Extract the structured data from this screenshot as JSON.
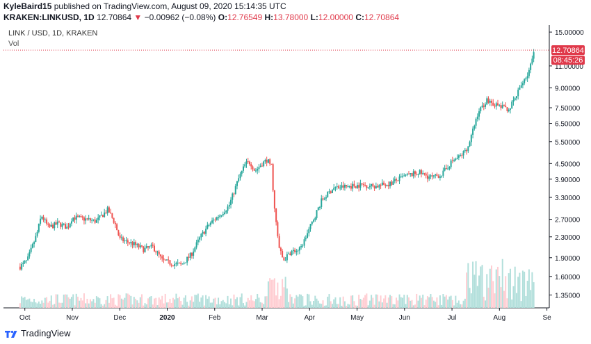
{
  "header": {
    "author": "KyleBaird15",
    "published_text": "published on TradingView.com, August 09, 2020 15:14:35 UTC",
    "symbol": "KRAKEN:LINKUSD, 1D",
    "last": "12.70864",
    "change": "−0.00962 (−0.08%)",
    "o_label": "O:",
    "o_value": "12.76549",
    "h_label": "H:",
    "h_value": "13.78000",
    "l_label": "L:",
    "l_value": "12.00000",
    "c_label": "C:",
    "c_value": "12.70864"
  },
  "legend": {
    "series": "LINK / USD, 1D, KRAKEN",
    "volume": "Vol"
  },
  "price_tag": {
    "value": "12.70864",
    "countdown": "08:45:26"
  },
  "footer": {
    "brand": "TradingView"
  },
  "colors": {
    "up": "#26a69a",
    "down": "#ef5350",
    "vol_up": "#b2dfdb",
    "vol_down": "#ffcdd2",
    "price_line": "#e0394a",
    "axis": "#131722"
  },
  "chart_data": {
    "type": "candlestick",
    "scale": "log",
    "ylim": [
      1.2,
      16.0
    ],
    "y_ticks": [
      "15.00000",
      "11.00000",
      "9.00000",
      "7.50000",
      "6.50000",
      "5.50000",
      "4.50000",
      "3.90000",
      "3.30000",
      "2.70000",
      "2.30000",
      "1.90000",
      "1.60000",
      "1.35000"
    ],
    "x_labels": [
      "Oct",
      "Nov",
      "Dec",
      "2020",
      "Feb",
      "Mar",
      "Apr",
      "May",
      "Jun",
      "Jul",
      "Aug",
      "Se"
    ],
    "x_label_months": [
      9,
      10,
      11,
      12,
      13,
      14,
      15,
      16,
      17,
      18,
      19,
      20
    ],
    "x_start_month": 8.55,
    "x_end_month": 20.05,
    "close_keypoints": [
      [
        8.9,
        1.75
      ],
      [
        9.05,
        1.85
      ],
      [
        9.25,
        2.35
      ],
      [
        9.35,
        2.8
      ],
      [
        9.5,
        2.5
      ],
      [
        9.7,
        2.6
      ],
      [
        9.9,
        2.5
      ],
      [
        10.0,
        2.75
      ],
      [
        10.3,
        2.7
      ],
      [
        10.5,
        2.65
      ],
      [
        10.75,
        2.95
      ],
      [
        10.9,
        2.6
      ],
      [
        11.0,
        2.25
      ],
      [
        11.3,
        2.15
      ],
      [
        11.5,
        2.05
      ],
      [
        11.7,
        2.1
      ],
      [
        11.9,
        1.85
      ],
      [
        12.1,
        1.8
      ],
      [
        12.3,
        1.78
      ],
      [
        12.5,
        1.95
      ],
      [
        12.7,
        2.3
      ],
      [
        12.9,
        2.6
      ],
      [
        13.1,
        2.8
      ],
      [
        13.3,
        3.05
      ],
      [
        13.5,
        3.9
      ],
      [
        13.65,
        4.5
      ],
      [
        13.75,
        4.55
      ],
      [
        13.85,
        4.2
      ],
      [
        14.0,
        4.5
      ],
      [
        14.1,
        4.65
      ],
      [
        14.2,
        4.4
      ],
      [
        14.25,
        3.1
      ],
      [
        14.35,
        2.1
      ],
      [
        14.45,
        1.85
      ],
      [
        14.6,
        2.0
      ],
      [
        14.8,
        2.05
      ],
      [
        14.9,
        2.25
      ],
      [
        15.1,
        2.75
      ],
      [
        15.25,
        3.2
      ],
      [
        15.5,
        3.6
      ],
      [
        15.8,
        3.65
      ],
      [
        16.1,
        3.7
      ],
      [
        16.4,
        3.65
      ],
      [
        16.7,
        3.75
      ],
      [
        17.0,
        4.0
      ],
      [
        17.3,
        4.15
      ],
      [
        17.5,
        4.0
      ],
      [
        17.6,
        3.95
      ],
      [
        17.8,
        4.1
      ],
      [
        18.0,
        4.6
      ],
      [
        18.2,
        4.85
      ],
      [
        18.35,
        5.3
      ],
      [
        18.55,
        7.2
      ],
      [
        18.75,
        8.1
      ],
      [
        18.9,
        7.7
      ],
      [
        19.0,
        7.6
      ],
      [
        19.2,
        7.4
      ],
      [
        19.35,
        8.3
      ],
      [
        19.5,
        9.6
      ],
      [
        19.6,
        10.2
      ],
      [
        19.75,
        12.7
      ]
    ]
  }
}
